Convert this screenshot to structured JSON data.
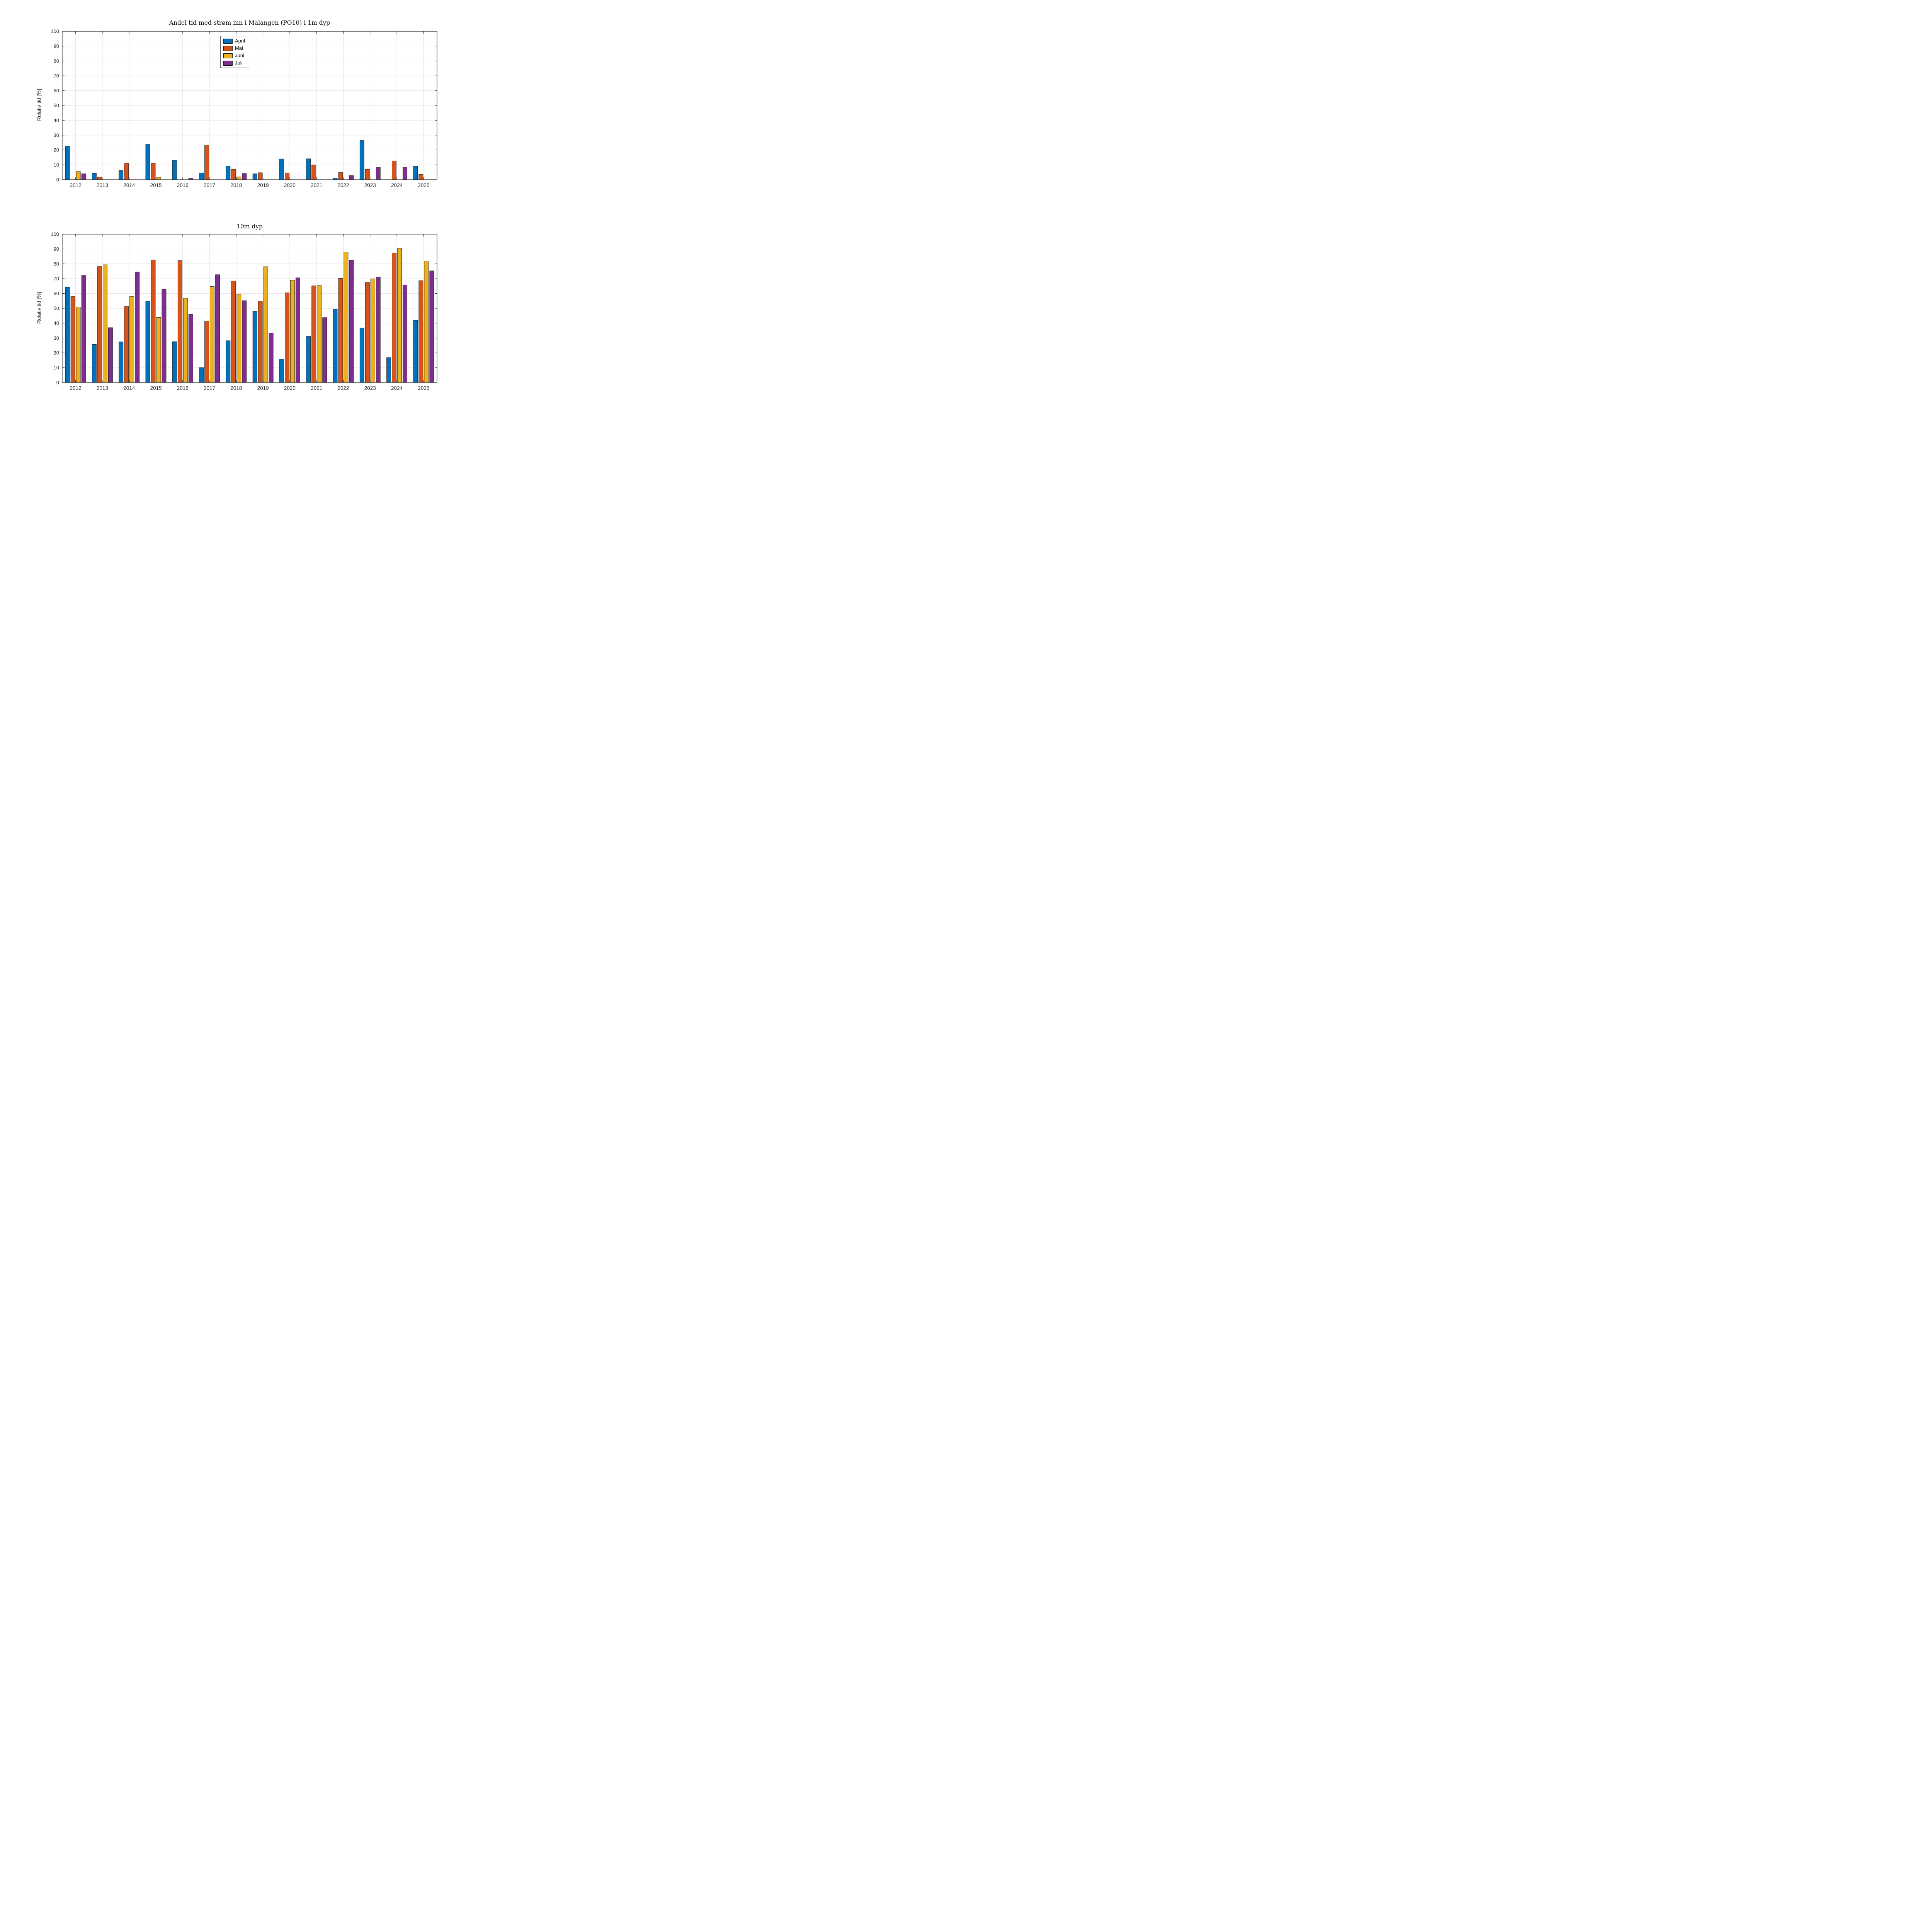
{
  "figure": {
    "background": "#ffffff",
    "axis_color": "#262626",
    "grid_color": "#e3e3e3",
    "bar_edge_color": "#1a1a1a"
  },
  "chart_data": [
    {
      "type": "bar",
      "title": "Andel tid med strøm inn i Malangen (PO10) i 1m dyp",
      "ylabel": "Relativ tid [%]",
      "xlabel": "",
      "ylim": [
        0,
        100
      ],
      "yticks": [
        0,
        10,
        20,
        30,
        40,
        50,
        60,
        70,
        80,
        90,
        100
      ],
      "grid": "both",
      "legend_visible": true,
      "legend_position": "inside-top-center",
      "categories": [
        "2012",
        "2013",
        "2014",
        "2015",
        "2016",
        "2017",
        "2018",
        "2019",
        "2020",
        "2021",
        "2022",
        "2023",
        "2024",
        "2025"
      ],
      "series": [
        {
          "name": "April",
          "color": "#0072BD",
          "values": [
            22.5,
            4.3,
            6.2,
            23.8,
            13.0,
            4.6,
            9.2,
            4.0,
            14.0,
            14.1,
            1.1,
            26.4,
            0,
            9.1
          ]
        },
        {
          "name": "Mai",
          "color": "#D95319",
          "values": [
            0,
            1.8,
            11.0,
            11.2,
            0,
            23.3,
            7.0,
            4.7,
            4.6,
            9.9,
            4.8,
            7.0,
            12.6,
            3.5
          ]
        },
        {
          "name": "Juni",
          "color": "#EDB120",
          "values": [
            5.5,
            0,
            0,
            1.6,
            0,
            0,
            1.9,
            0,
            0,
            0,
            0,
            0,
            0,
            0
          ]
        },
        {
          "name": "Juli",
          "color": "#7E2F8E",
          "values": [
            4.0,
            0,
            0,
            0,
            1.2,
            0,
            4.2,
            0,
            0,
            0,
            2.8,
            8.4,
            8.4,
            0
          ]
        }
      ]
    },
    {
      "type": "bar",
      "title": "10m dyp",
      "ylabel": "Relativ tid [%]",
      "xlabel": "",
      "ylim": [
        0,
        100
      ],
      "yticks": [
        0,
        10,
        20,
        30,
        40,
        50,
        60,
        70,
        80,
        90,
        100
      ],
      "grid": "both",
      "legend_visible": false,
      "legend_position": "none",
      "categories": [
        "2012",
        "2013",
        "2014",
        "2015",
        "2016",
        "2017",
        "2018",
        "2019",
        "2020",
        "2021",
        "2022",
        "2023",
        "2024",
        "2025"
      ],
      "series": [
        {
          "name": "April",
          "color": "#0072BD",
          "values": [
            64.2,
            25.7,
            27.5,
            54.8,
            27.6,
            10.1,
            28.2,
            48.1,
            15.7,
            31.1,
            49.5,
            36.8,
            16.8,
            41.9
          ]
        },
        {
          "name": "Mai",
          "color": "#D95319",
          "values": [
            58.0,
            78.2,
            51.3,
            82.6,
            82.2,
            41.5,
            68.4,
            54.8,
            60.5,
            65.2,
            70.2,
            67.5,
            87.4,
            68.7
          ]
        },
        {
          "name": "Juni",
          "color": "#EDB120",
          "values": [
            50.9,
            79.4,
            58.0,
            43.9,
            56.8,
            64.7,
            59.6,
            78.1,
            69.0,
            65.4,
            87.9,
            69.9,
            90.3,
            81.9
          ]
        },
        {
          "name": "Juli",
          "color": "#7E2F8E",
          "values": [
            72.2,
            37.0,
            74.5,
            62.9,
            46.0,
            72.7,
            55.2,
            33.5,
            70.6,
            43.8,
            82.5,
            71.2,
            65.8,
            75.3
          ]
        }
      ]
    }
  ]
}
